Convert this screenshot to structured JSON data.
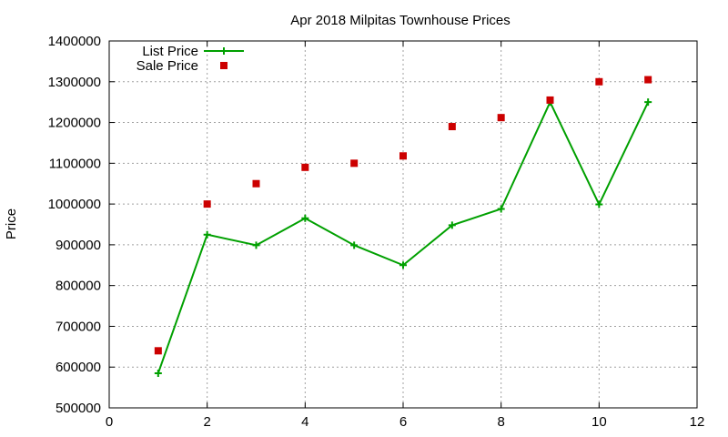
{
  "chart_data": {
    "type": "line",
    "title": "Apr 2018 Milpitas Townhouse Prices",
    "xlabel": "",
    "ylabel": "Price",
    "xlim": [
      0,
      12
    ],
    "ylim": [
      500000,
      1400000
    ],
    "xticks": [
      0,
      2,
      4,
      6,
      8,
      10,
      12
    ],
    "yticks": [
      500000,
      600000,
      700000,
      800000,
      900000,
      1000000,
      1100000,
      1200000,
      1300000,
      1400000
    ],
    "grid": true,
    "legend_position": "top-left",
    "series": [
      {
        "name": "List Price",
        "style": "line-with-plus-markers",
        "color": "#00a000",
        "x": [
          1,
          2,
          3,
          4,
          5,
          6,
          7,
          8,
          9,
          10,
          11
        ],
        "values": [
          585000,
          925000,
          899000,
          965000,
          899000,
          850000,
          948000,
          988000,
          1250000,
          999000,
          1250000
        ]
      },
      {
        "name": "Sale Price",
        "style": "square-markers",
        "color": "#cc0000",
        "x": [
          1,
          2,
          3,
          4,
          5,
          6,
          7,
          8,
          9,
          10,
          11
        ],
        "values": [
          640000,
          1000000,
          1050000,
          1090000,
          1100000,
          1118000,
          1190000,
          1212000,
          1255000,
          1300000,
          1305000
        ]
      }
    ]
  }
}
